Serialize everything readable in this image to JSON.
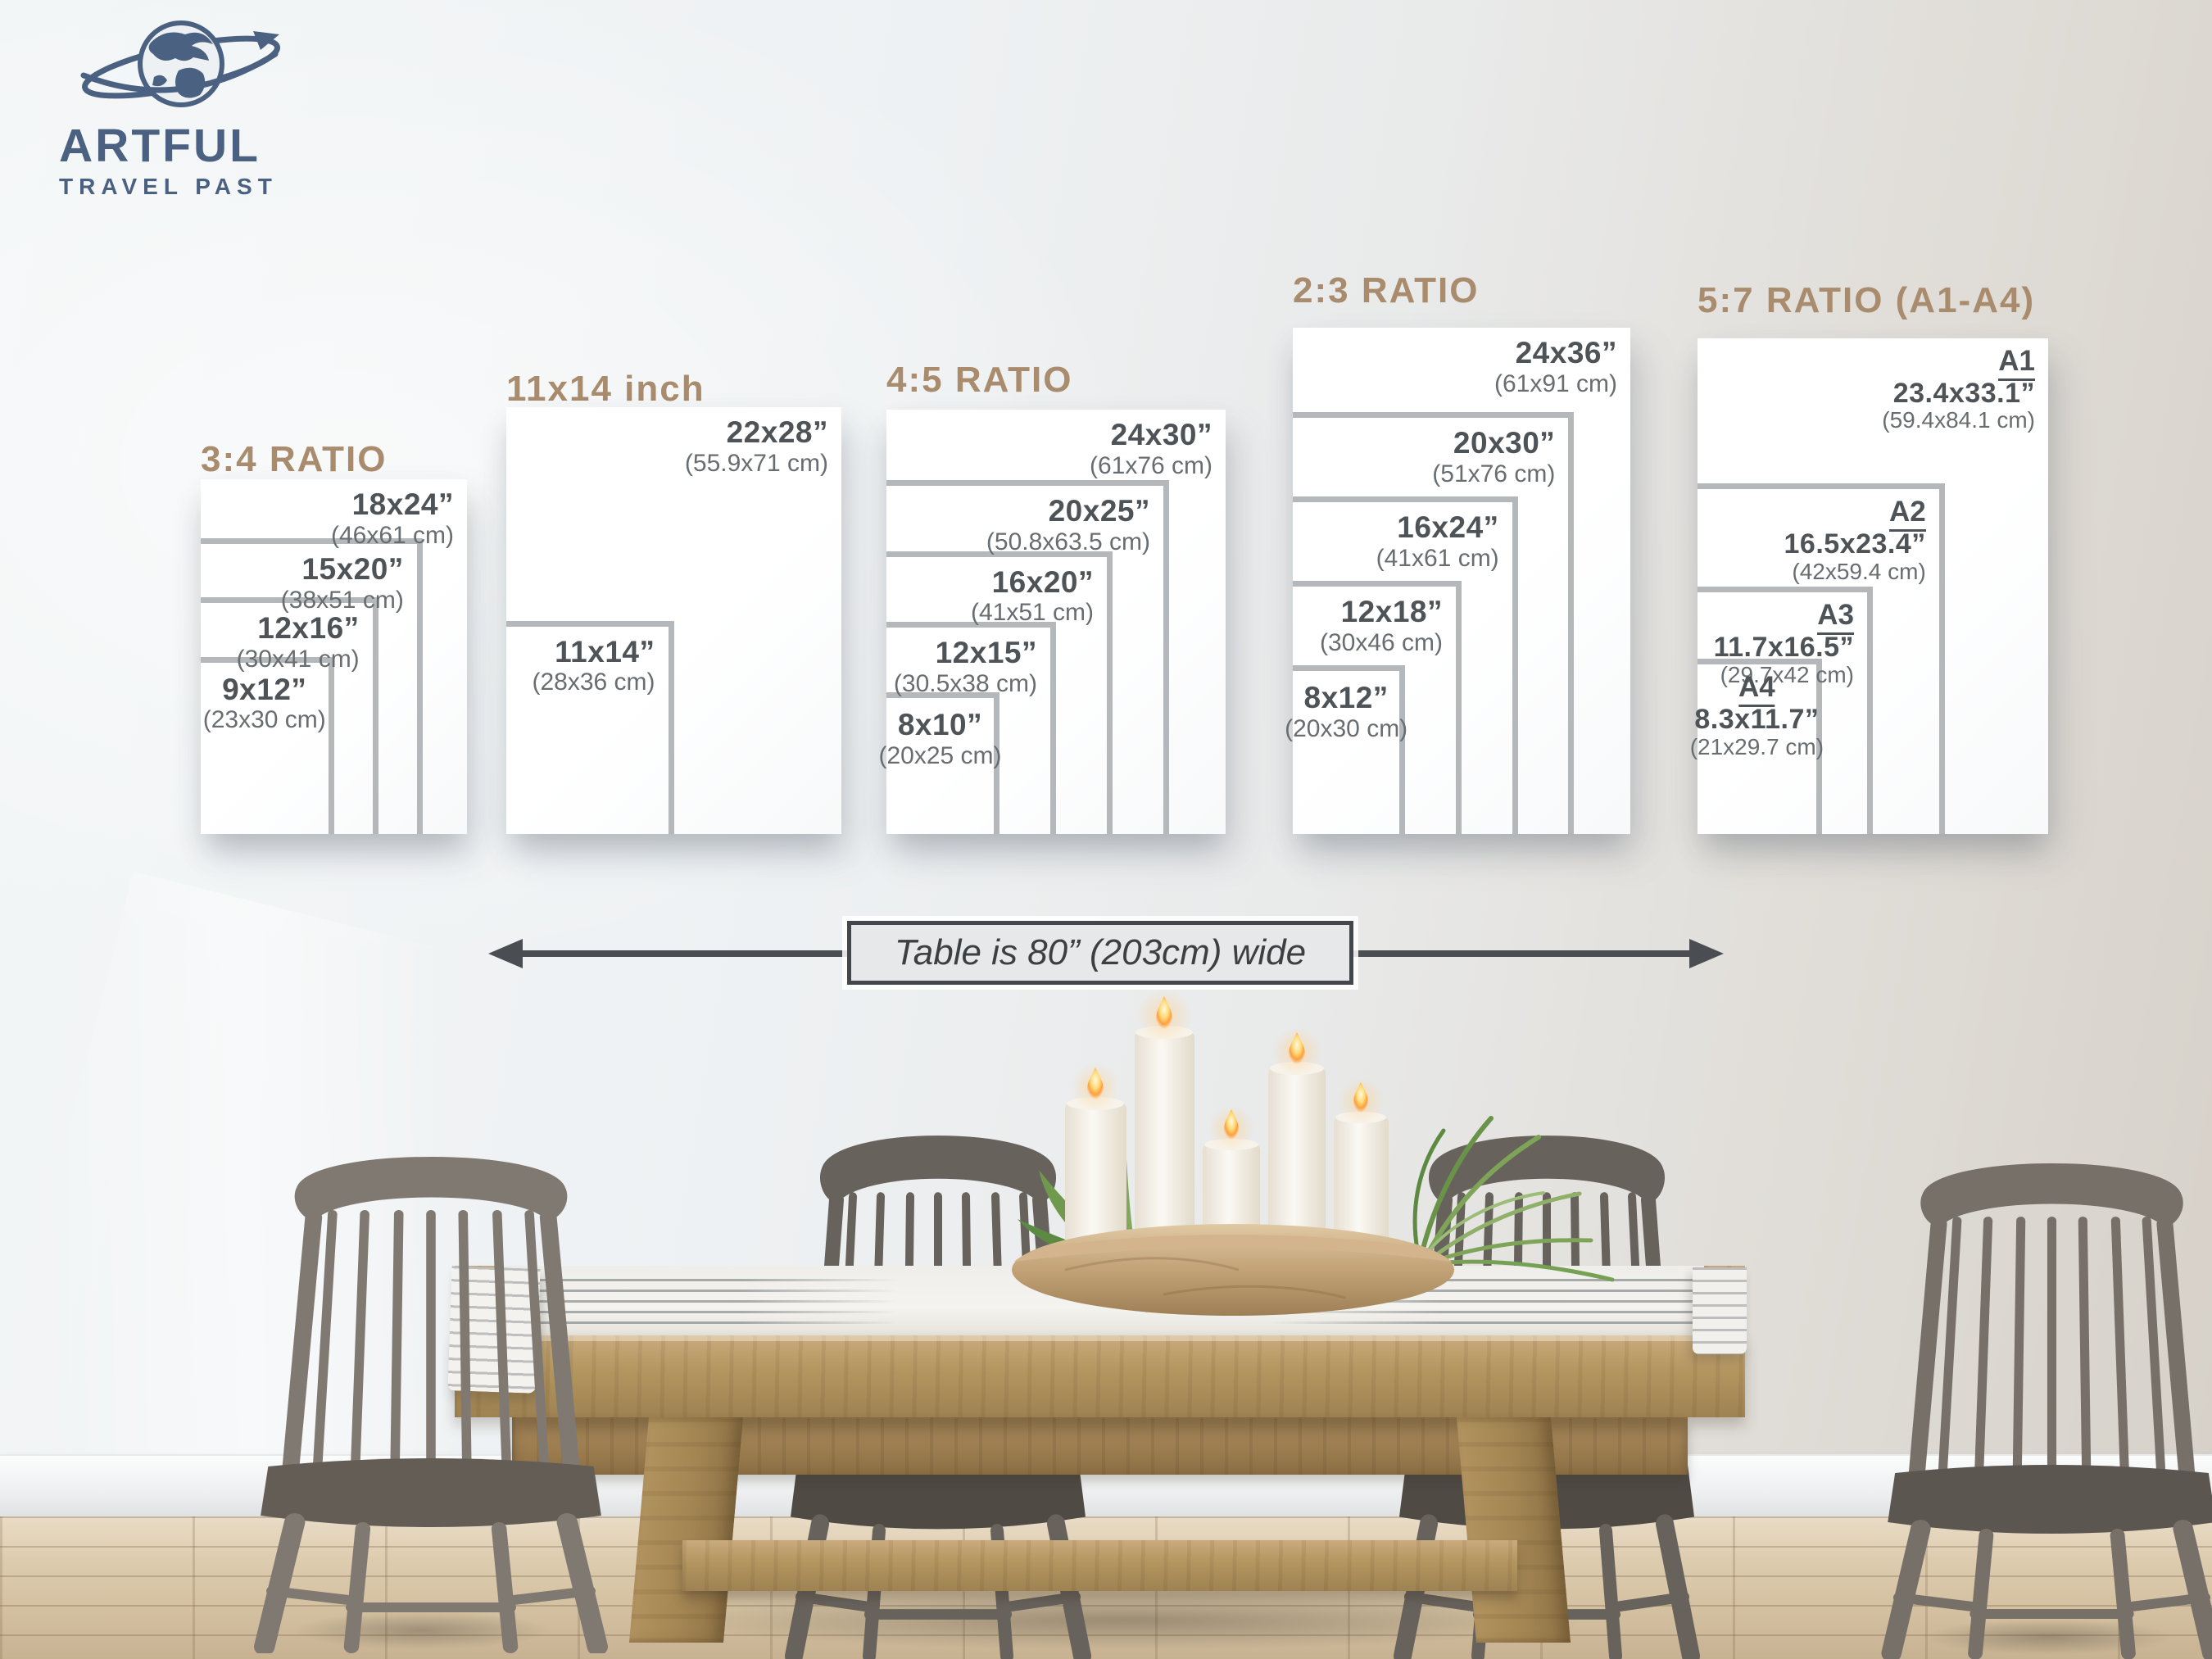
{
  "brand": {
    "line1": "ARTFUL",
    "line2": "TRAVEL PAST",
    "icon": "globe-orbit-icon"
  },
  "size_groups": [
    {
      "title": "3:4 RATIO",
      "sizes": [
        {
          "label": "18x24”",
          "cm": "(46x61 cm)",
          "w_in": 18,
          "h_in": 24
        },
        {
          "label": "15x20”",
          "cm": "(38x51 cm)",
          "w_in": 15,
          "h_in": 20
        },
        {
          "label": "12x16”",
          "cm": "(30x41 cm)",
          "w_in": 12,
          "h_in": 16
        },
        {
          "label": "9x12”",
          "cm": "(23x30 cm)",
          "w_in": 9,
          "h_in": 12
        }
      ]
    },
    {
      "title": "11x14 inch",
      "sizes": [
        {
          "label": "22x28”",
          "cm": "(55.9x71 cm)",
          "w_in": 22,
          "h_in": 28
        },
        {
          "label": "11x14”",
          "cm": "(28x36 cm)",
          "w_in": 11,
          "h_in": 14
        }
      ]
    },
    {
      "title": "4:5 RATIO",
      "sizes": [
        {
          "label": "24x30”",
          "cm": "(61x76 cm)",
          "w_in": 24,
          "h_in": 30
        },
        {
          "label": "20x25”",
          "cm": "(50.8x63.5 cm)",
          "w_in": 20,
          "h_in": 25
        },
        {
          "label": "16x20”",
          "cm": "(41x51 cm)",
          "w_in": 16,
          "h_in": 20
        },
        {
          "label": "12x15”",
          "cm": "(30.5x38 cm)",
          "w_in": 12,
          "h_in": 15
        },
        {
          "label": "8x10”",
          "cm": "(20x25 cm)",
          "w_in": 8,
          "h_in": 10
        }
      ]
    },
    {
      "title": "2:3 RATIO",
      "sizes": [
        {
          "label": "24x36”",
          "cm": "(61x91 cm)",
          "w_in": 24,
          "h_in": 36
        },
        {
          "label": "20x30”",
          "cm": "(51x76 cm)",
          "w_in": 20,
          "h_in": 30
        },
        {
          "label": "16x24”",
          "cm": "(41x61 cm)",
          "w_in": 16,
          "h_in": 24
        },
        {
          "label": "12x18”",
          "cm": "(30x46 cm)",
          "w_in": 12,
          "h_in": 18
        },
        {
          "label": "8x12”",
          "cm": "(20x30 cm)",
          "w_in": 8,
          "h_in": 12
        }
      ]
    },
    {
      "title": "5:7 RATIO (A1-A4)",
      "sizes": [
        {
          "name": "A1",
          "label": "23.4x33.1”",
          "cm": "(59.4x84.1 cm)",
          "w_in": 23.4,
          "h_in": 33.1
        },
        {
          "name": "A2",
          "label": "16.5x23.4”",
          "cm": "(42x59.4 cm)",
          "w_in": 16.5,
          "h_in": 23.4
        },
        {
          "name": "A3",
          "label": "11.7x16.5”",
          "cm": "(29.7x42 cm)",
          "w_in": 11.7,
          "h_in": 16.5
        },
        {
          "name": "A4",
          "label": "8.3x11.7”",
          "cm": "(21x29.7 cm)",
          "w_in": 8.3,
          "h_in": 11.7
        }
      ]
    }
  ],
  "table_note": {
    "text": "Table is 80” (203cm) wide"
  },
  "colors": {
    "accent_tan": "#a98c6d",
    "logo_blue": "#4b6181",
    "label_dark": "#4e5357",
    "label_mid": "#686d71",
    "line_gray": "#b5b8ba",
    "arrow_gray": "#4a4e52"
  }
}
